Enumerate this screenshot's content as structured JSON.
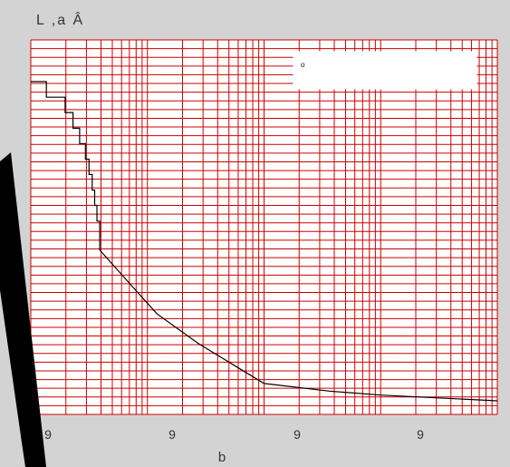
{
  "colors": {
    "background": "#d3d3d3",
    "plot_background": "#ffffff",
    "grid": "#cc0000",
    "curve": "#000000",
    "text": "#333333",
    "legend_background": "#ffffff",
    "overlay_stroke": "#000000"
  },
  "chart_data": {
    "type": "line",
    "title": "",
    "ylabel_top": "L ,a Â",
    "xlabel": "b",
    "legend": {
      "text": "º",
      "placement": "top-right"
    },
    "x_scale": "log",
    "x_decades": 4,
    "x_tick_labels": [
      "9",
      "9",
      "9",
      "9"
    ],
    "y_divisions": 43,
    "grid": true,
    "series": [
      {
        "type": "step-then-curve",
        "points": [
          {
            "x": 1.0,
            "y": 1.0
          },
          {
            "x": 1.36,
            "y": 1.0
          },
          {
            "x": 1.36,
            "y": 0.953
          },
          {
            "x": 1.97,
            "y": 0.953
          },
          {
            "x": 1.97,
            "y": 0.907
          },
          {
            "x": 2.3,
            "y": 0.907
          },
          {
            "x": 2.3,
            "y": 0.86
          },
          {
            "x": 2.62,
            "y": 0.86
          },
          {
            "x": 2.62,
            "y": 0.814
          },
          {
            "x": 2.94,
            "y": 0.814
          },
          {
            "x": 2.94,
            "y": 0.767
          },
          {
            "x": 3.16,
            "y": 0.767
          },
          {
            "x": 3.16,
            "y": 0.721
          },
          {
            "x": 3.36,
            "y": 0.721
          },
          {
            "x": 3.36,
            "y": 0.674
          },
          {
            "x": 3.53,
            "y": 0.674
          },
          {
            "x": 3.53,
            "y": 0.628
          },
          {
            "x": 3.69,
            "y": 0.628
          },
          {
            "x": 3.69,
            "y": 0.581
          },
          {
            "x": 3.9,
            "y": 0.581
          },
          {
            "x": 3.9,
            "y": 0.494
          },
          {
            "x": 8.57,
            "y": 0.36
          },
          {
            "x": 12.1,
            "y": 0.302
          },
          {
            "x": 27.3,
            "y": 0.213
          },
          {
            "x": 100,
            "y": 0.093
          },
          {
            "x": 363,
            "y": 0.07
          },
          {
            "x": 1000,
            "y": 0.058
          },
          {
            "x": 10000,
            "y": 0.041
          }
        ]
      }
    ]
  }
}
